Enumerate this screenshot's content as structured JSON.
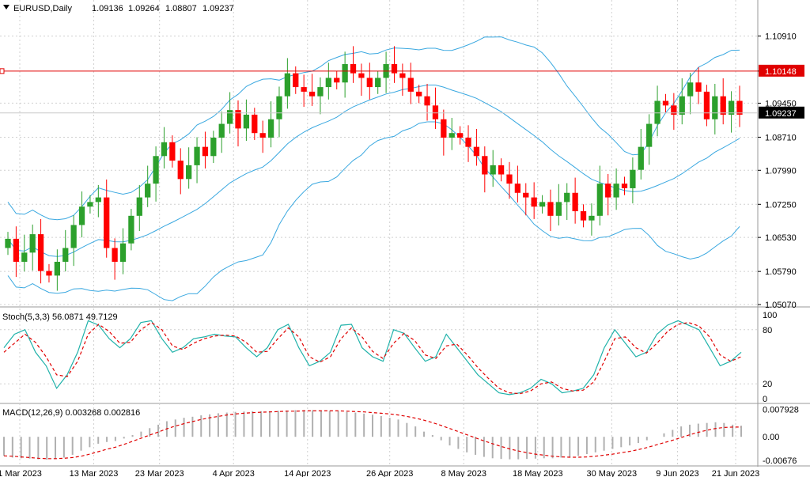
{
  "header": {
    "symbol": "EURUSD,Daily",
    "open": "1.09136",
    "high": "1.09264",
    "low": "1.08807",
    "close": "1.09237"
  },
  "colors": {
    "bull": "#2ca02c",
    "bear": "#ff0000",
    "bands": "#3aa8e0",
    "hline": "#e00000",
    "stoch_main": "#20b2aa",
    "stoch_signal": "#e00000",
    "macd_hist": "#b0b0b0",
    "macd_signal": "#e00000",
    "grid": "#d0d0d0",
    "price_tag_bg": "#000000"
  },
  "chart_data": [
    {
      "type": "candlestick",
      "title": "EURUSD,Daily",
      "ylim": [
        1.0507,
        1.1135
      ],
      "y_ticks": [
        "1.10910",
        "1.10148",
        "1.09450",
        "1.08710",
        "1.07990",
        "1.07250",
        "1.06530",
        "1.05790",
        "1.05070"
      ],
      "horizontal_line": {
        "value": 1.10148,
        "label": "1.10148"
      },
      "current_price": {
        "value": 1.09237,
        "label": "1.09237"
      },
      "x_labels": [
        "1 Mar 2023",
        "13 Mar 2023",
        "23 Mar 2023",
        "4 Apr 2023",
        "14 Apr 2023",
        "26 Apr 2023",
        "8 May 2023",
        "18 May 2023",
        "30 May 2023",
        "9 Jun 2023",
        "21 Jun 2023"
      ],
      "close_path": [
        1.065,
        1.06,
        1.062,
        1.066,
        1.058,
        1.057,
        1.06,
        1.063,
        1.068,
        1.072,
        1.073,
        1.074,
        1.063,
        1.06,
        1.064,
        1.07,
        1.074,
        1.077,
        1.083,
        1.086,
        1.082,
        1.078,
        1.081,
        1.085,
        1.083,
        1.087,
        1.09,
        1.093,
        1.089,
        1.092,
        1.088,
        1.087,
        1.091,
        1.096,
        1.101,
        1.098,
        1.097,
        1.096,
        1.098,
        1.1,
        1.099,
        1.103,
        1.101,
        1.1,
        1.098,
        1.1,
        1.103,
        1.101,
        1.1,
        1.097,
        1.096,
        1.094,
        1.091,
        1.087,
        1.088,
        1.087,
        1.085,
        1.083,
        1.079,
        1.081,
        1.079,
        1.077,
        1.075,
        1.074,
        1.072,
        1.073,
        1.07,
        1.073,
        1.075,
        1.071,
        1.069,
        1.07,
        1.077,
        1.074,
        1.077,
        1.076,
        1.08,
        1.085,
        1.09,
        1.095,
        1.094,
        1.092,
        1.096,
        1.099,
        1.097,
        1.091,
        1.096,
        1.092,
        1.095,
        1.092
      ]
    },
    {
      "type": "line",
      "title": "Stoch(5,3,3) 56.0871 49.7129",
      "ylim": [
        0,
        100
      ],
      "y_ticks": [
        "100",
        "80",
        "20",
        "0"
      ],
      "series": [
        {
          "name": "main",
          "values": [
            60,
            75,
            80,
            55,
            40,
            15,
            30,
            55,
            90,
            85,
            70,
            60,
            70,
            88,
            90,
            70,
            55,
            60,
            70,
            72,
            75,
            73,
            72,
            60,
            50,
            60,
            80,
            86,
            60,
            40,
            45,
            55,
            85,
            86,
            60,
            50,
            45,
            80,
            76,
            60,
            45,
            50,
            75,
            60,
            45,
            30,
            20,
            10,
            8,
            10,
            15,
            25,
            20,
            10,
            12,
            15,
            30,
            60,
            80,
            65,
            50,
            55,
            75,
            85,
            90,
            85,
            80,
            60,
            40,
            45,
            55
          ]
        },
        {
          "name": "signal",
          "values": [
            55,
            65,
            75,
            66,
            50,
            30,
            28,
            45,
            75,
            86,
            78,
            65,
            66,
            80,
            88,
            80,
            62,
            58,
            65,
            70,
            73,
            74,
            73,
            66,
            55,
            56,
            70,
            82,
            72,
            50,
            44,
            50,
            70,
            82,
            72,
            56,
            48,
            65,
            76,
            68,
            52,
            48,
            62,
            64,
            52,
            38,
            26,
            15,
            10,
            9,
            12,
            20,
            22,
            15,
            12,
            13,
            22,
            45,
            70,
            72,
            60,
            54,
            65,
            78,
            86,
            88,
            84,
            72,
            52,
            45,
            50
          ]
        }
      ]
    },
    {
      "type": "bar",
      "title": "MACD(12,26,9) 0.003268 0.002816",
      "ylim": [
        -0.0075,
        0.0085
      ],
      "y_ticks": [
        "0.007928",
        "0.00",
        "-0.00676"
      ],
      "series": [
        {
          "name": "histogram",
          "values": [
            -0.0055,
            -0.006,
            -0.0062,
            -0.0063,
            -0.0065,
            -0.0066,
            -0.0064,
            -0.006,
            -0.0052,
            -0.004,
            -0.003,
            -0.002,
            -0.0015,
            -0.0012,
            -0.0005,
            0.0005,
            0.0015,
            0.0025,
            0.0035,
            0.0045,
            0.005,
            0.0055,
            0.0058,
            0.0062,
            0.0065,
            0.0068,
            0.007,
            0.0072,
            0.0073,
            0.0074,
            0.0074,
            0.0074,
            0.0075,
            0.0076,
            0.0077,
            0.0077,
            0.0077,
            0.0076,
            0.0075,
            0.0074,
            0.0072,
            0.007,
            0.0067,
            0.0064,
            0.006,
            0.0055,
            0.005,
            0.004,
            0.003,
            0.0015,
            0.0005,
            -0.001,
            -0.0025,
            -0.0035,
            -0.0045,
            -0.0052,
            -0.0058,
            -0.0062,
            -0.0064,
            -0.0065,
            -0.0065,
            -0.0064,
            -0.0063,
            -0.0062,
            -0.0062,
            -0.006,
            -0.0058,
            -0.0055,
            -0.005,
            -0.0045,
            -0.004,
            -0.0035,
            -0.003,
            -0.0025,
            -0.0018,
            -0.001,
            0.0,
            0.001,
            0.002,
            0.003,
            0.0035,
            0.0038,
            0.004,
            0.0042,
            0.004,
            0.0035,
            0.0032
          ]
        },
        {
          "name": "signal",
          "values": [
            -0.0055,
            -0.0056,
            -0.0058,
            -0.006,
            -0.0062,
            -0.0063,
            -0.0063,
            -0.0062,
            -0.006,
            -0.0056,
            -0.005,
            -0.0043,
            -0.0036,
            -0.003,
            -0.0022,
            -0.0013,
            -0.0004,
            0.0005,
            0.0014,
            0.0023,
            0.0031,
            0.0038,
            0.0044,
            0.005,
            0.0055,
            0.0059,
            0.0063,
            0.0066,
            0.0068,
            0.007,
            0.0071,
            0.0072,
            0.0073,
            0.0074,
            0.0074,
            0.0075,
            0.0075,
            0.0075,
            0.0075,
            0.0075,
            0.0074,
            0.0073,
            0.0072,
            0.007,
            0.0068,
            0.0066,
            0.0063,
            0.0059,
            0.0054,
            0.0048,
            0.0041,
            0.0033,
            0.0024,
            0.0015,
            0.0006,
            -0.0003,
            -0.0012,
            -0.002,
            -0.0028,
            -0.0035,
            -0.0041,
            -0.0046,
            -0.005,
            -0.0053,
            -0.0056,
            -0.0058,
            -0.0059,
            -0.0059,
            -0.0058,
            -0.0056,
            -0.0053,
            -0.005,
            -0.0046,
            -0.0042,
            -0.0037,
            -0.0031,
            -0.0024,
            -0.0017,
            -0.001,
            -0.0002,
            0.0006,
            0.0013,
            0.0019,
            0.0024,
            0.0027,
            0.0028,
            0.0028
          ]
        }
      ]
    }
  ]
}
